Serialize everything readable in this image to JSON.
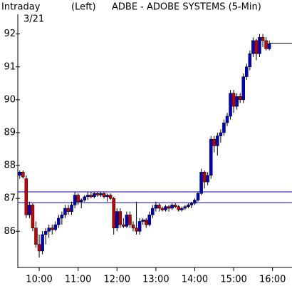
{
  "chart_data": {
    "type": "candlestick",
    "title": "ADBE - ADOBE SYSTEMS (5-Min)",
    "subtitle": "Intraday",
    "date": "3/21",
    "axis_side": "(Left)",
    "x": [
      570,
      575,
      580,
      585,
      590,
      595,
      600,
      605,
      610,
      615,
      620,
      625,
      630,
      635,
      640,
      645,
      650,
      655,
      660,
      665,
      670,
      675,
      680,
      685,
      690,
      695,
      700,
      705,
      710,
      715,
      720,
      725,
      730,
      735,
      740,
      745,
      750,
      755,
      760,
      765,
      770,
      775,
      780,
      785,
      790,
      795,
      800,
      805,
      810,
      815,
      820,
      825,
      830,
      835,
      840,
      845,
      850,
      855,
      860,
      865,
      870,
      875,
      880,
      885,
      890,
      895,
      900,
      905,
      910,
      915,
      920,
      925,
      930,
      935,
      940,
      945,
      950,
      955
    ],
    "open": [
      87.7,
      87.8,
      87.6,
      86.5,
      86.8,
      86.1,
      85.6,
      85.4,
      85.9,
      86.0,
      86.1,
      86.05,
      86.2,
      86.4,
      86.5,
      86.7,
      86.6,
      86.8,
      87.1,
      86.9,
      86.95,
      87.05,
      87.1,
      87.05,
      87.15,
      87.1,
      87.15,
      87.05,
      87.1,
      87.0,
      86.1,
      86.6,
      86.2,
      86.15,
      86.5,
      86.2,
      86.1,
      86.0,
      86.3,
      86.35,
      86.2,
      86.5,
      86.7,
      86.8,
      86.7,
      86.65,
      86.75,
      86.7,
      86.8,
      86.75,
      86.65,
      86.7,
      86.75,
      86.8,
      86.85,
      86.95,
      87.15,
      87.8,
      87.5,
      87.7,
      88.8,
      88.6,
      88.9,
      89.0,
      89.3,
      89.5,
      90.2,
      89.8,
      90.1,
      90.0,
      90.7,
      91.0,
      91.4,
      91.8,
      91.4,
      91.9,
      91.8,
      91.55
    ],
    "high": [
      87.85,
      87.85,
      87.7,
      86.9,
      86.85,
      86.3,
      85.9,
      86.0,
      86.1,
      86.2,
      86.2,
      86.3,
      86.5,
      86.6,
      86.8,
      86.8,
      86.9,
      87.2,
      87.15,
      87.0,
      87.1,
      87.2,
      87.2,
      87.2,
      87.2,
      87.2,
      87.2,
      87.15,
      87.15,
      87.05,
      86.7,
      86.7,
      86.4,
      86.6,
      86.6,
      86.3,
      86.9,
      86.4,
      86.4,
      86.4,
      86.6,
      86.8,
      86.9,
      86.85,
      86.75,
      86.8,
      86.8,
      86.85,
      86.85,
      86.8,
      86.75,
      86.8,
      86.85,
      86.9,
      87.0,
      87.2,
      87.9,
      87.85,
      87.8,
      88.9,
      88.9,
      89.0,
      89.1,
      89.4,
      89.6,
      90.3,
      90.3,
      90.2,
      90.2,
      90.8,
      91.1,
      91.5,
      91.9,
      91.85,
      92.0,
      92.0,
      91.9,
      91.8
    ],
    "low": [
      87.6,
      87.6,
      86.4,
      86.4,
      86.0,
      85.5,
      85.2,
      85.3,
      85.6,
      85.8,
      85.9,
      86.0,
      86.1,
      86.2,
      86.4,
      86.5,
      86.5,
      86.7,
      86.8,
      86.7,
      86.9,
      86.95,
      87.0,
      87.0,
      87.05,
      87.05,
      87.0,
      86.9,
      86.95,
      85.9,
      86.0,
      86.1,
      86.1,
      86.1,
      86.1,
      86.0,
      85.9,
      85.9,
      86.2,
      86.1,
      86.15,
      86.4,
      86.6,
      86.6,
      86.6,
      86.6,
      86.6,
      86.65,
      86.7,
      86.6,
      86.6,
      86.65,
      86.7,
      86.7,
      86.8,
      86.9,
      87.1,
      87.3,
      87.4,
      87.6,
      88.4,
      88.3,
      88.7,
      88.9,
      89.2,
      89.4,
      89.6,
      89.7,
      89.9,
      89.9,
      90.6,
      90.9,
      91.3,
      91.2,
      91.3,
      91.6,
      91.5,
      91.5
    ],
    "close": [
      87.8,
      87.65,
      86.5,
      86.8,
      86.1,
      85.6,
      85.4,
      85.9,
      86.0,
      86.1,
      86.05,
      86.2,
      86.4,
      86.5,
      86.7,
      86.6,
      86.8,
      87.1,
      86.9,
      86.95,
      87.05,
      87.1,
      87.05,
      87.15,
      87.1,
      87.15,
      87.05,
      87.1,
      87.0,
      86.1,
      86.6,
      86.2,
      86.15,
      86.5,
      86.2,
      86.1,
      86.0,
      86.3,
      86.35,
      86.2,
      86.5,
      86.7,
      86.8,
      86.7,
      86.65,
      86.75,
      86.7,
      86.8,
      86.75,
      86.65,
      86.7,
      86.75,
      86.8,
      86.85,
      86.95,
      87.15,
      87.8,
      87.5,
      87.7,
      88.8,
      88.6,
      88.9,
      89.0,
      89.3,
      89.5,
      90.2,
      89.8,
      90.1,
      90.0,
      90.7,
      91.0,
      91.4,
      91.8,
      91.4,
      91.9,
      91.8,
      91.55,
      91.7
    ],
    "up_color": "#0000cc",
    "down_color": "#cc0000",
    "hlines": [
      87.2,
      86.87
    ],
    "hline_color": "#0000cc",
    "last_price": 91.72,
    "xlim": [
      567,
      990
    ],
    "xticks": [
      {
        "value": 600,
        "label": "10:00"
      },
      {
        "value": 660,
        "label": "11:00"
      },
      {
        "value": 720,
        "label": "12:00"
      },
      {
        "value": 780,
        "label": "13:00"
      },
      {
        "value": 840,
        "label": "14:00"
      },
      {
        "value": 900,
        "label": "15:00"
      },
      {
        "value": 960,
        "label": "16:00"
      }
    ],
    "ylim": [
      84.9,
      92.6
    ],
    "yticks": [
      86,
      87,
      88,
      89,
      90,
      91,
      92
    ],
    "grid": false
  }
}
